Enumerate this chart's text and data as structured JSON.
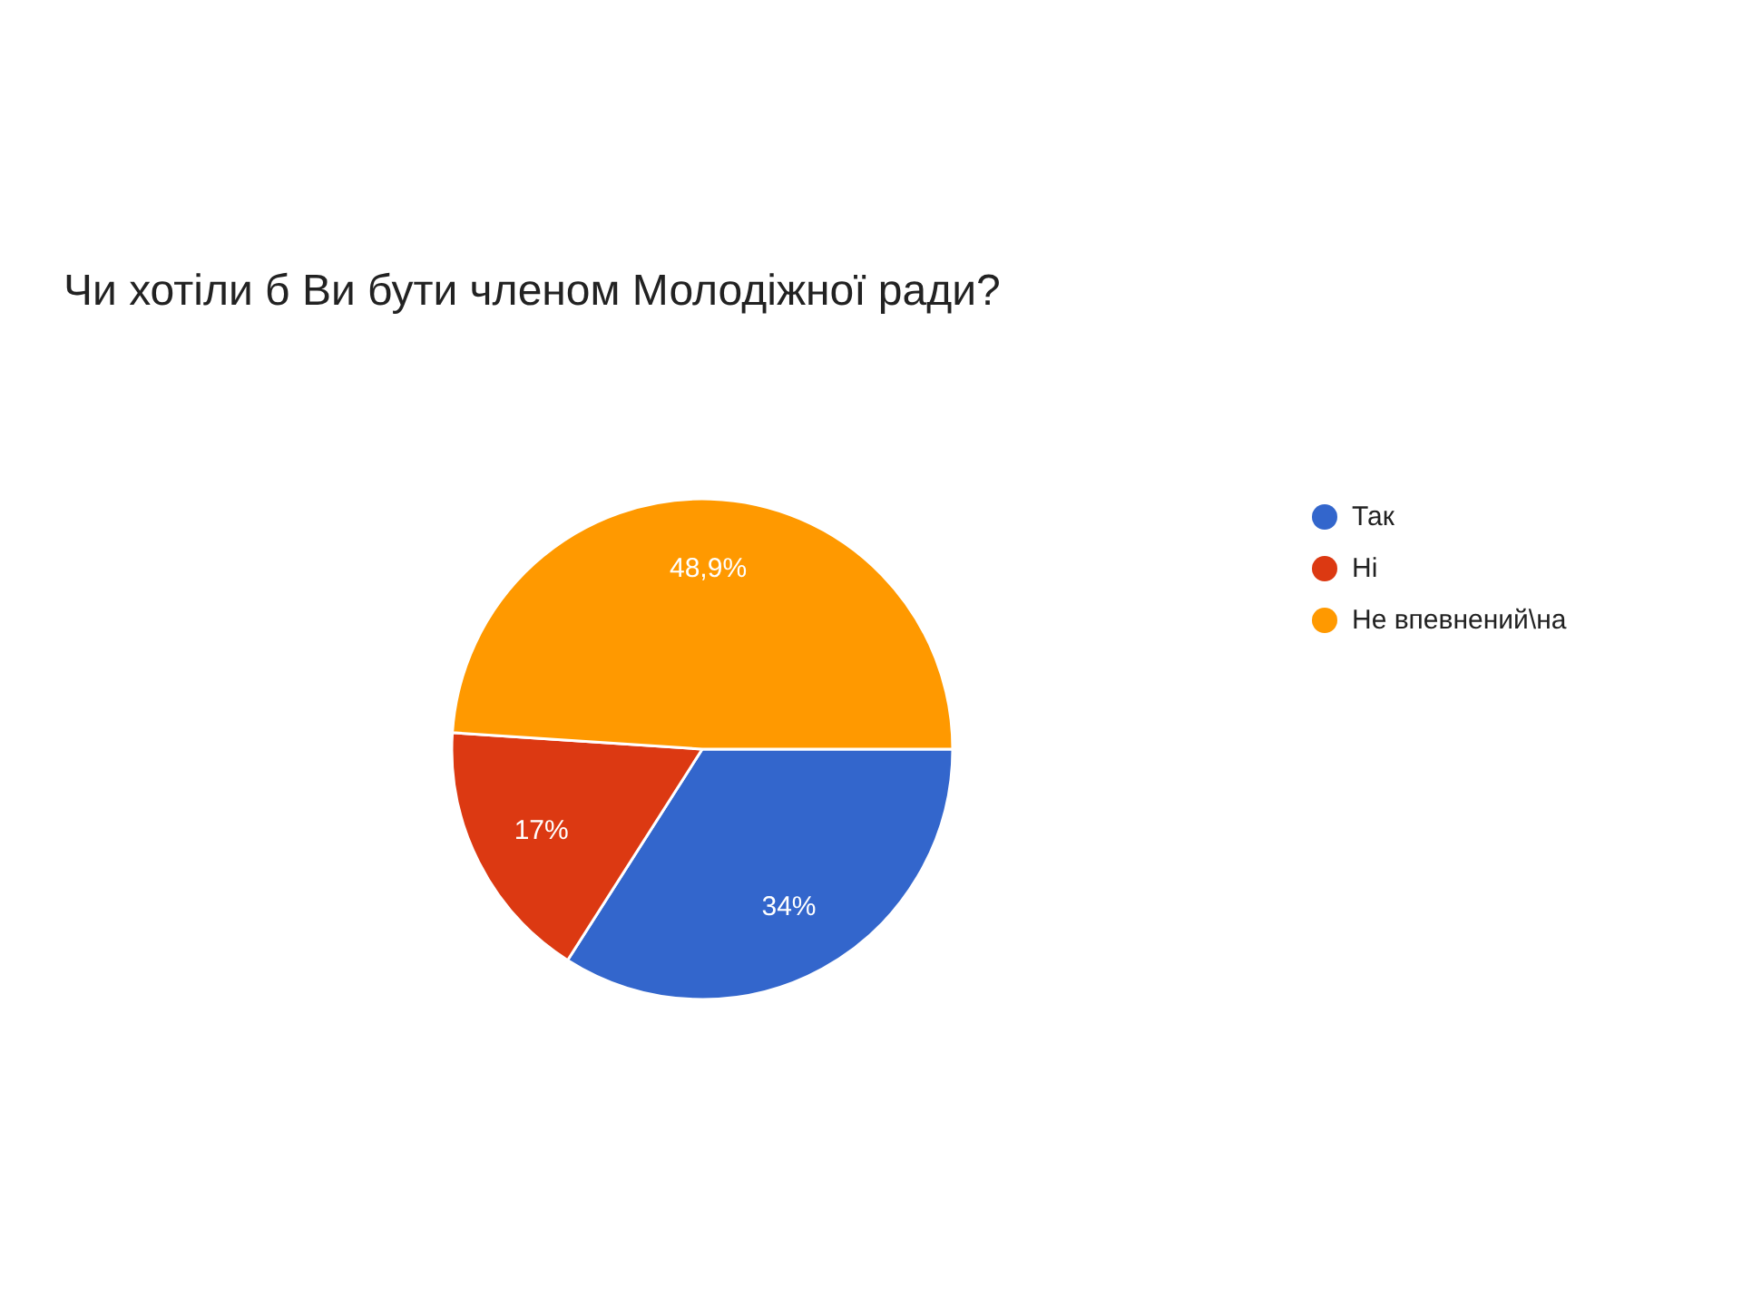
{
  "chart_data": {
    "type": "pie",
    "title": "Чи хотіли б Ви бути членом Молодіжної ради?",
    "categories": [
      "Так",
      "Ні",
      "Не впевнений\\на"
    ],
    "values": [
      34,
      17,
      48.9
    ],
    "colors": [
      "#3366cc",
      "#dc3912",
      "#ff9900"
    ],
    "value_labels": [
      "34%",
      "17%",
      "48,9%"
    ],
    "legend": "right"
  }
}
